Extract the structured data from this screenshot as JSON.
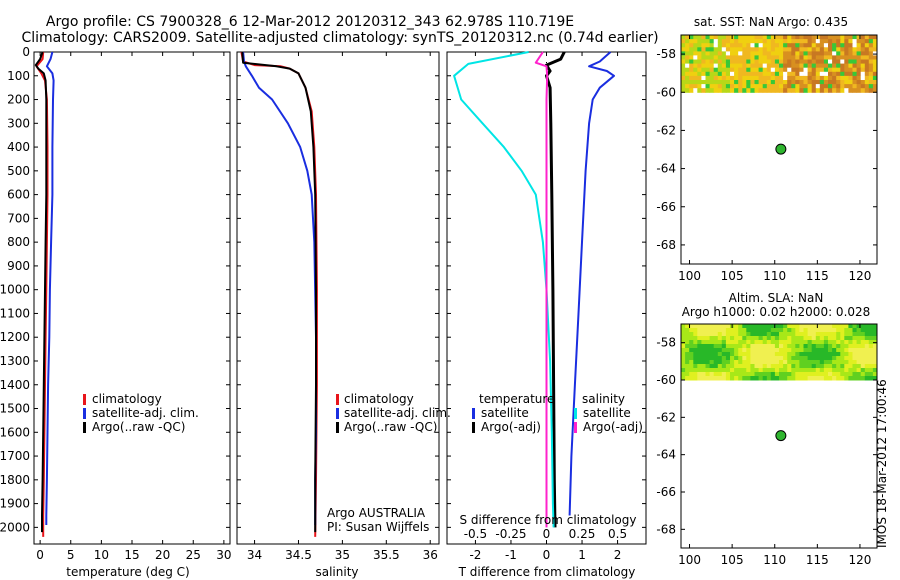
{
  "header": {
    "title_line1": "Argo profile: CS 7900328_6 12-Mar-2012 20120312_343 62.978S 110.719E",
    "title_line2": "Climatology: CARS2009. Satellite-adjusted climatology: synTS_20120312.nc (0.74d earlier)"
  },
  "side_stamp": "IMOS 18-Mar-2012 17:00:46",
  "chart_data": [
    {
      "id": "temperature",
      "type": "line",
      "xlabel": "temperature (deg C)",
      "ylabel": "",
      "xlim": [
        -1,
        31
      ],
      "ylim": [
        2070,
        0
      ],
      "xticks": [
        "0",
        "5",
        "10",
        "15",
        "20",
        "25",
        "30"
      ],
      "xtick_values": [
        0,
        5,
        10,
        15,
        20,
        25,
        30
      ],
      "yticks": [
        "0",
        "100",
        "200",
        "300",
        "400",
        "500",
        "600",
        "700",
        "800",
        "900",
        "1000",
        "1100",
        "1200",
        "1300",
        "1400",
        "1500",
        "1600",
        "1700",
        "1800",
        "1900",
        "2000"
      ],
      "ytick_values": [
        0,
        100,
        200,
        300,
        400,
        500,
        600,
        700,
        800,
        900,
        1000,
        1100,
        1200,
        1300,
        1400,
        1500,
        1600,
        1700,
        1800,
        1900,
        2000
      ],
      "legend": [
        {
          "label": "climatology",
          "color": "#e8141a"
        },
        {
          "label": "satellite-adj. clim.",
          "color": "#1a2ee0"
        },
        {
          "label": "Argo(..raw -QC)",
          "color": "#000000"
        }
      ],
      "series": [
        {
          "name": "climatology",
          "color": "#e8141a",
          "width": 2,
          "points": [
            [
              0.5,
              0
            ],
            [
              0.4,
              30
            ],
            [
              -0.6,
              60
            ],
            [
              0.2,
              90
            ],
            [
              0.8,
              120
            ],
            [
              1.1,
              200
            ],
            [
              1.2,
              400
            ],
            [
              1.2,
              600
            ],
            [
              1.1,
              800
            ],
            [
              1.0,
              1000
            ],
            [
              0.9,
              1200
            ],
            [
              0.8,
              1400
            ],
            [
              0.7,
              1600
            ],
            [
              0.6,
              1800
            ],
            [
              0.5,
              1950
            ],
            [
              0.5,
              2040
            ]
          ]
        },
        {
          "name": "satellite-adj. clim.",
          "color": "#1a2ee0",
          "width": 2,
          "points": [
            [
              2.0,
              0
            ],
            [
              1.7,
              30
            ],
            [
              1.1,
              60
            ],
            [
              2.0,
              90
            ],
            [
              2.2,
              120
            ],
            [
              2.1,
              200
            ],
            [
              2.0,
              400
            ],
            [
              2.0,
              600
            ],
            [
              1.8,
              800
            ],
            [
              1.6,
              1000
            ],
            [
              1.5,
              1200
            ],
            [
              1.3,
              1400
            ],
            [
              1.2,
              1600
            ],
            [
              1.1,
              1800
            ],
            [
              1.0,
              1950
            ],
            [
              1.0,
              1990
            ]
          ]
        },
        {
          "name": "Argo(..raw -QC)",
          "color": "#000000",
          "width": 2,
          "points": [
            [
              0.4,
              0
            ],
            [
              0.0,
              30
            ],
            [
              -0.7,
              55
            ],
            [
              -0.3,
              70
            ],
            [
              0.6,
              90
            ],
            [
              0.9,
              120
            ],
            [
              1.0,
              200
            ],
            [
              1.0,
              400
            ],
            [
              1.0,
              600
            ],
            [
              0.9,
              800
            ],
            [
              0.8,
              1000
            ],
            [
              0.7,
              1200
            ],
            [
              0.6,
              1400
            ],
            [
              0.5,
              1600
            ],
            [
              0.4,
              1800
            ],
            [
              0.3,
              1950
            ],
            [
              0.3,
              2020
            ]
          ]
        }
      ]
    },
    {
      "id": "salinity",
      "type": "line",
      "xlabel": "salinity",
      "ylabel": "",
      "xlim": [
        33.8,
        36.1
      ],
      "ylim": [
        2070,
        0
      ],
      "xticks": [
        "34",
        "34.5",
        "35",
        "35.5",
        "36"
      ],
      "xtick_values": [
        34,
        34.5,
        35,
        35.5,
        36
      ],
      "legend": [
        {
          "label": "climatology",
          "color": "#e8141a"
        },
        {
          "label": "satellite-adj. clim.",
          "color": "#1a2ee0"
        },
        {
          "label": "Argo(..raw -QC)",
          "color": "#000000"
        }
      ],
      "annotation": [
        "Argo AUSTRALIA",
        "PI: Susan Wijffels"
      ],
      "series": [
        {
          "name": "climatology",
          "color": "#e8141a",
          "width": 2,
          "points": [
            [
              33.85,
              0
            ],
            [
              33.87,
              40
            ],
            [
              34.0,
              55
            ],
            [
              34.3,
              60
            ],
            [
              34.4,
              70
            ],
            [
              34.5,
              90
            ],
            [
              34.58,
              150
            ],
            [
              34.65,
              250
            ],
            [
              34.68,
              400
            ],
            [
              34.7,
              600
            ],
            [
              34.71,
              1000
            ],
            [
              34.71,
              1400
            ],
            [
              34.7,
              1800
            ],
            [
              34.69,
              2040
            ]
          ]
        },
        {
          "name": "satellite-adj. clim.",
          "color": "#1a2ee0",
          "width": 2,
          "points": [
            [
              33.87,
              0
            ],
            [
              33.88,
              40
            ],
            [
              33.9,
              60
            ],
            [
              33.97,
              100
            ],
            [
              34.05,
              150
            ],
            [
              34.2,
              200
            ],
            [
              34.38,
              300
            ],
            [
              34.52,
              400
            ],
            [
              34.6,
              500
            ],
            [
              34.65,
              600
            ],
            [
              34.68,
              800
            ],
            [
              34.7,
              1200
            ],
            [
              34.7,
              1600
            ],
            [
              34.69,
              1800
            ],
            [
              34.69,
              1990
            ]
          ]
        },
        {
          "name": "Argo(..raw -QC)",
          "color": "#000000",
          "width": 2,
          "points": [
            [
              33.86,
              0
            ],
            [
              33.87,
              45
            ],
            [
              34.25,
              60
            ],
            [
              34.4,
              70
            ],
            [
              34.5,
              90
            ],
            [
              34.58,
              150
            ],
            [
              34.64,
              250
            ],
            [
              34.67,
              400
            ],
            [
              34.69,
              600
            ],
            [
              34.7,
              1000
            ],
            [
              34.7,
              1400
            ],
            [
              34.69,
              1800
            ],
            [
              34.69,
              2020
            ]
          ]
        }
      ]
    },
    {
      "id": "difference",
      "type": "line",
      "xlabel": "T difference from climatology",
      "top_label": "S difference from climatology",
      "xlim": [
        -2.8,
        2.8
      ],
      "ylim": [
        2070,
        0
      ],
      "xticks": [
        "-2",
        "-1",
        "0",
        "1",
        "2"
      ],
      "xtick_values": [
        -2,
        -1,
        0,
        1,
        2
      ],
      "s_ticks": [
        "-0.5",
        "-0.25",
        "0",
        "0.25",
        "0.5"
      ],
      "s_tick_values": [
        -2,
        -1,
        0,
        1,
        2
      ],
      "legend_headers": [
        "temperature",
        "salinity"
      ],
      "legend": [
        {
          "label": "satellite",
          "color": "#1a2ee0"
        },
        {
          "label": "Argo(-adj)",
          "color": "#000000"
        },
        {
          "label": "satellite",
          "color": "#00e5e5"
        },
        {
          "label": "Argo(-adj)",
          "color": "#ff22cc"
        }
      ],
      "series": [
        {
          "name": "temperature satellite",
          "color": "#1a2ee0",
          "width": 2,
          "points": [
            [
              1.8,
              0
            ],
            [
              1.5,
              40
            ],
            [
              1.2,
              60
            ],
            [
              1.7,
              80
            ],
            [
              1.9,
              100
            ],
            [
              1.5,
              150
            ],
            [
              1.3,
              200
            ],
            [
              1.2,
              300
            ],
            [
              1.1,
              500
            ],
            [
              1.0,
              800
            ],
            [
              0.9,
              1100
            ],
            [
              0.8,
              1400
            ],
            [
              0.7,
              1700
            ],
            [
              0.65,
              1950
            ]
          ]
        },
        {
          "name": "temperature Argo(-adj)",
          "color": "#000000",
          "width": 3,
          "points": [
            [
              0.5,
              0
            ],
            [
              0.4,
              30
            ],
            [
              0.0,
              55
            ],
            [
              0.1,
              80
            ],
            [
              0.0,
              100
            ],
            [
              0.1,
              150
            ],
            [
              0.12,
              300
            ],
            [
              0.15,
              600
            ],
            [
              0.18,
              1000
            ],
            [
              0.2,
              1400
            ],
            [
              0.22,
              1800
            ],
            [
              0.24,
              2000
            ]
          ]
        },
        {
          "name": "salinity satellite",
          "color": "#00e5e5",
          "width": 2,
          "points": [
            [
              -0.5,
              0
            ],
            [
              -2.2,
              50
            ],
            [
              -2.6,
              100
            ],
            [
              -2.4,
              200
            ],
            [
              -1.8,
              300
            ],
            [
              -1.2,
              400
            ],
            [
              -0.7,
              500
            ],
            [
              -0.3,
              600
            ],
            [
              -0.1,
              800
            ],
            [
              0.0,
              1000
            ],
            [
              0.1,
              1300
            ],
            [
              0.15,
              1600
            ],
            [
              0.18,
              1900
            ],
            [
              0.2,
              2000
            ]
          ]
        },
        {
          "name": "salinity Argo(-adj)",
          "color": "#ff22cc",
          "width": 2,
          "points": [
            [
              -0.1,
              0
            ],
            [
              -0.3,
              45
            ],
            [
              0.0,
              60
            ],
            [
              0.02,
              100
            ],
            [
              0.0,
              200
            ],
            [
              0.0,
              600
            ],
            [
              0.0,
              1000
            ],
            [
              0.0,
              1400
            ],
            [
              0.0,
              1800
            ],
            [
              0.0,
              2000
            ]
          ]
        }
      ]
    },
    {
      "id": "sst_map",
      "type": "heatmap",
      "title": "sat. SST: NaN  Argo: 0.435",
      "xlim": [
        99,
        122
      ],
      "ylim": [
        -69,
        -57
      ],
      "xticks": [
        "100",
        "105",
        "110",
        "115",
        "120"
      ],
      "xtick_values": [
        100,
        105,
        110,
        115,
        120
      ],
      "yticks": [
        "-58",
        "-60",
        "-62",
        "-64",
        "-66",
        "-68"
      ],
      "ytick_values": [
        -58,
        -60,
        -62,
        -64,
        -66,
        -68
      ],
      "data_extent": {
        "lon": [
          99,
          122
        ],
        "lat": [
          -60,
          -57
        ]
      },
      "argo_position": [
        110.719,
        -62.978
      ],
      "colors": [
        "#f0d010",
        "#e8a818",
        "#d89020",
        "#c87822",
        "#b8d818",
        "#38c838",
        "#20a020",
        "#f0b820"
      ]
    },
    {
      "id": "sla_map",
      "type": "heatmap",
      "title": "Altim. SLA: NaN",
      "subtitle": "Argo h1000: 0.02  h2000: 0.028",
      "xlim": [
        99,
        122
      ],
      "ylim": [
        -69,
        -57
      ],
      "xticks": [
        "100",
        "105",
        "110",
        "115",
        "120"
      ],
      "xtick_values": [
        100,
        105,
        110,
        115,
        120
      ],
      "yticks": [
        "-58",
        "-60",
        "-62",
        "-64",
        "-66",
        "-68"
      ],
      "ytick_values": [
        -58,
        -60,
        -62,
        -64,
        -66,
        -68
      ],
      "data_extent": {
        "lon": [
          99,
          122
        ],
        "lat": [
          -60,
          -57
        ]
      },
      "argo_position": [
        110.719,
        -62.978
      ],
      "colors": [
        "#60d020",
        "#a8e818",
        "#e0f020",
        "#28b828",
        "#f0f050"
      ]
    }
  ]
}
